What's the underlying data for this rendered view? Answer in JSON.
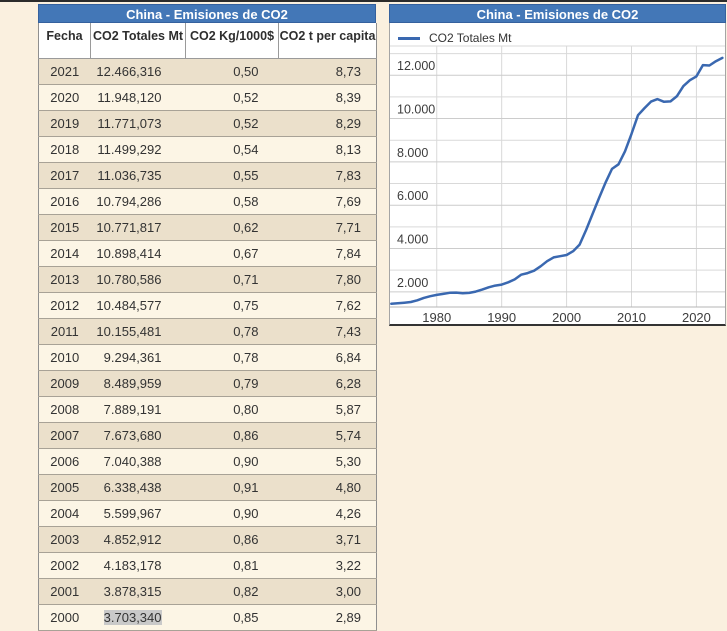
{
  "colors": {
    "accent_blue": "#4377b7",
    "line_blue": "#3a68b0",
    "page_bg": "#faf0df",
    "row_dark": "#ebe0cb",
    "row_light": "#fcf5e5",
    "selection_gray": "#c9c9c9",
    "grid_gray": "#d9d9d9",
    "axis_gray": "#b5b5b5"
  },
  "table": {
    "title": "China - Emisiones de CO2",
    "columns": [
      "Fecha",
      "CO2 Totales Mt",
      "CO2 Kg/1000$",
      "CO2 t per capita"
    ],
    "rows": [
      [
        "2021",
        "12.466,316",
        "0,50",
        "8,73"
      ],
      [
        "2020",
        "11.948,120",
        "0,52",
        "8,39"
      ],
      [
        "2019",
        "11.771,073",
        "0,52",
        "8,29"
      ],
      [
        "2018",
        "11.499,292",
        "0,54",
        "8,13"
      ],
      [
        "2017",
        "11.036,735",
        "0,55",
        "7,83"
      ],
      [
        "2016",
        "10.794,286",
        "0,58",
        "7,69"
      ],
      [
        "2015",
        "10.771,817",
        "0,62",
        "7,71"
      ],
      [
        "2014",
        "10.898,414",
        "0,67",
        "7,84"
      ],
      [
        "2013",
        "10.780,586",
        "0,71",
        "7,80"
      ],
      [
        "2012",
        "10.484,577",
        "0,75",
        "7,62"
      ],
      [
        "2011",
        "10.155,481",
        "0,78",
        "7,43"
      ],
      [
        "2010",
        "9.294,361",
        "0,78",
        "6,84"
      ],
      [
        "2009",
        "8.489,959",
        "0,79",
        "6,28"
      ],
      [
        "2008",
        "7.889,191",
        "0,80",
        "5,87"
      ],
      [
        "2007",
        "7.673,680",
        "0,86",
        "5,74"
      ],
      [
        "2006",
        "7.040,388",
        "0,90",
        "5,30"
      ],
      [
        "2005",
        "6.338,438",
        "0,91",
        "4,80"
      ],
      [
        "2004",
        "5.599,967",
        "0,90",
        "4,26"
      ],
      [
        "2003",
        "4.852,912",
        "0,86",
        "3,71"
      ],
      [
        "2002",
        "4.183,178",
        "0,81",
        "3,22"
      ],
      [
        "2001",
        "3.878,315",
        "0,82",
        "3,00"
      ],
      [
        "2000",
        "3.703,340",
        "0,85",
        "2,89"
      ]
    ],
    "selected_cell": {
      "row": 21,
      "col": 1
    }
  },
  "chart": {
    "title": "China - Emisiones de CO2",
    "legend_label": "CO2 Totales  Mt"
  },
  "chart_data": {
    "type": "line",
    "title": "China - Emisiones de CO2",
    "series_name": "CO2 Totales Mt",
    "x": [
      1973,
      1974,
      1975,
      1976,
      1977,
      1978,
      1979,
      1980,
      1981,
      1982,
      1983,
      1984,
      1985,
      1986,
      1987,
      1988,
      1989,
      1990,
      1991,
      1992,
      1993,
      1994,
      1995,
      1996,
      1997,
      1998,
      1999,
      2000,
      2001,
      2002,
      2003,
      2004,
      2005,
      2006,
      2007,
      2008,
      2009,
      2010,
      2011,
      2012,
      2013,
      2014,
      2015,
      2016,
      2017,
      2018,
      2019,
      2020,
      2021,
      2022,
      2023,
      2024
    ],
    "values": [
      1450,
      1470,
      1500,
      1530,
      1610,
      1720,
      1800,
      1860,
      1905,
      1955,
      1965,
      1935,
      1950,
      2010,
      2105,
      2210,
      2290,
      2335,
      2440,
      2575,
      2790,
      2865,
      2975,
      3180,
      3415,
      3590,
      3645,
      3703,
      3878,
      4183,
      4853,
      5600,
      6338,
      7040,
      7674,
      7889,
      8490,
      9294,
      10155,
      10485,
      10781,
      10898,
      10772,
      10794,
      11037,
      11499,
      11771,
      11948,
      12466,
      12450,
      12650,
      12800
    ],
    "xlim": [
      1972.8,
      2024.4
    ],
    "ylim": [
      1300,
      13350
    ],
    "x_ticks": [
      1980,
      1990,
      2000,
      2010,
      2020
    ],
    "x_tick_labels": [
      "1980",
      "1990",
      "2000",
      "2010",
      "2020"
    ],
    "y_gridlines": [
      2000,
      3000,
      4000,
      5000,
      6000,
      7000,
      8000,
      9000,
      10000,
      11000,
      12000,
      13000
    ],
    "y_major_ticks": [
      2000,
      4000,
      6000,
      8000,
      10000,
      12000
    ],
    "y_tick_labels": [
      "2.000",
      "4.000",
      "6.000",
      "8.000",
      "10.000",
      "12.000"
    ],
    "grid": true,
    "legend_position": "top-left"
  }
}
